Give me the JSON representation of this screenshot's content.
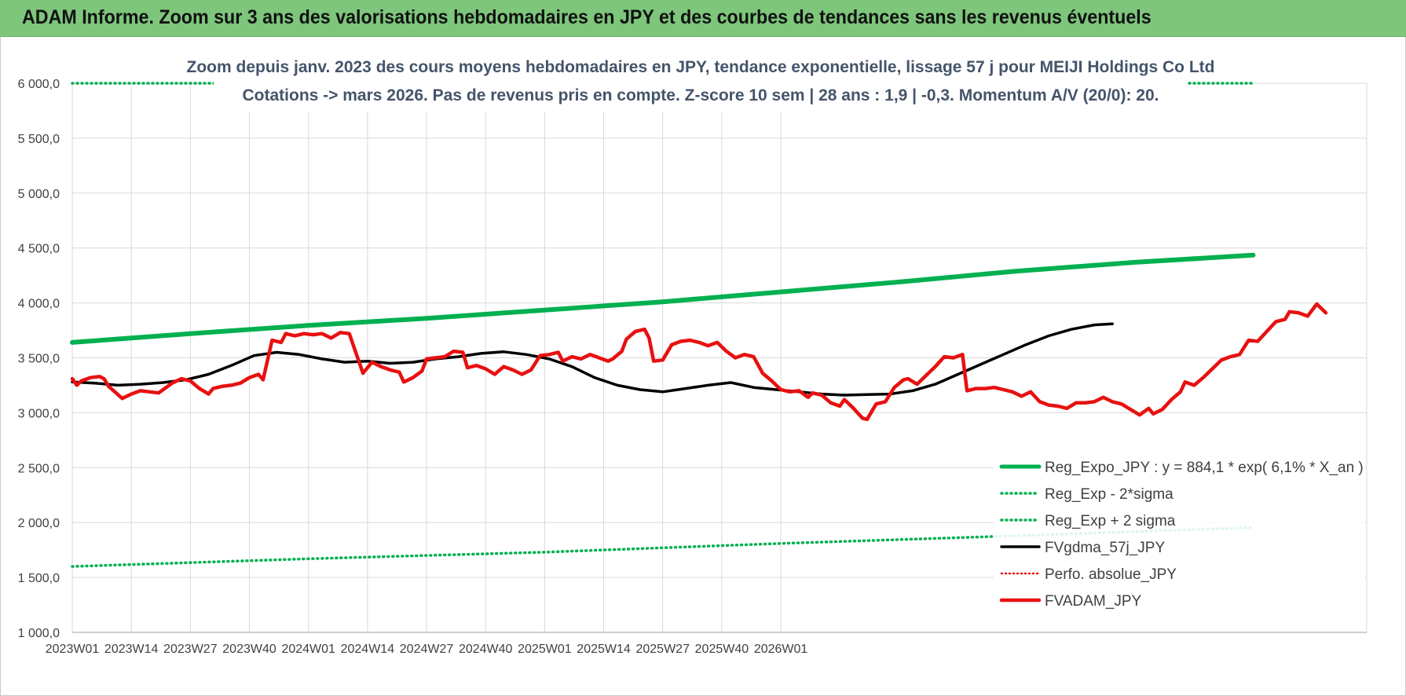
{
  "header": {
    "title": "ADAM Informe. Zoom sur 3 ans des valorisations hebdomadaires en JPY et des courbes de tendances sans les revenus éventuels"
  },
  "colors": {
    "banner": "#7dc67b",
    "trend": "#00b050",
    "price": "#e81010",
    "smooth": "#000000",
    "perf": "#e81010",
    "grid": "#d9d9d9"
  },
  "chart_data": {
    "type": "line",
    "subtitle_line1": "Zoom depuis janv. 2023 des cours moyens hebdomadaires en JPY, tendance exponentielle, lissage 57 j pour MEIJI Holdings Co Ltd",
    "subtitle_line2": "Cotations -> mars 2026. Pas de revenus pris en compte. Z-score 10 sem | 28 ans : 1,9 | -0,3. Momentum A/V (20/0): 20.",
    "ylim": [
      1000,
      6000
    ],
    "y_ticks": [
      "1 000,0",
      "1 500,0",
      "2 000,0",
      "2 500,0",
      "3 000,0",
      "3 500,0",
      "4 000,0",
      "4 500,0",
      "5 000,0",
      "5 500,0",
      "6 000,0"
    ],
    "x_ticks": [
      "2023W01",
      "2023W14",
      "2023W27",
      "2023W40",
      "2024W01",
      "2024W14",
      "2024W27",
      "2024W40",
      "2025W01",
      "2025W14",
      "2025W27",
      "2025W40",
      "2026W01"
    ],
    "grid": true,
    "legend_position": "bottom-right",
    "series": [
      {
        "name": "Reg_Expo_JPY : y = 884,1 * exp( 6,1% *  X_an )",
        "style": "thick-solid",
        "values": [
          [
            0,
            3640
          ],
          [
            26,
            3720
          ],
          [
            52,
            3795
          ],
          [
            78,
            3860
          ],
          [
            104,
            3935
          ],
          [
            130,
            4010
          ],
          [
            156,
            4100
          ],
          [
            182,
            4190
          ],
          [
            208,
            4290
          ],
          [
            234,
            4370
          ],
          [
            260,
            4435
          ]
        ]
      },
      {
        "name": "Reg_Exp - 2*sigma",
        "style": "dotted",
        "values": [
          [
            0,
            1600
          ],
          [
            52,
            1670
          ],
          [
            104,
            1730
          ],
          [
            156,
            1810
          ],
          [
            208,
            1880
          ],
          [
            260,
            1955
          ]
        ]
      },
      {
        "name": "Reg_Exp + 2 sigma",
        "style": "dotted",
        "values": [
          [
            0,
            6000
          ],
          [
            260,
            6000
          ]
        ]
      },
      {
        "name": "FVgdma_57j_JPY",
        "style": "solid",
        "values": [
          [
            0,
            3280
          ],
          [
            5,
            3270
          ],
          [
            10,
            3250
          ],
          [
            15,
            3260
          ],
          [
            20,
            3275
          ],
          [
            25,
            3300
          ],
          [
            30,
            3350
          ],
          [
            35,
            3430
          ],
          [
            40,
            3520
          ],
          [
            45,
            3550
          ],
          [
            50,
            3530
          ],
          [
            55,
            3490
          ],
          [
            60,
            3460
          ],
          [
            65,
            3470
          ],
          [
            70,
            3450
          ],
          [
            75,
            3460
          ],
          [
            80,
            3490
          ],
          [
            85,
            3510
          ],
          [
            90,
            3540
          ],
          [
            95,
            3555
          ],
          [
            100,
            3530
          ],
          [
            105,
            3490
          ],
          [
            110,
            3420
          ],
          [
            115,
            3320
          ],
          [
            120,
            3250
          ],
          [
            125,
            3210
          ],
          [
            130,
            3190
          ],
          [
            135,
            3220
          ],
          [
            140,
            3250
          ],
          [
            145,
            3275
          ],
          [
            150,
            3230
          ],
          [
            155,
            3210
          ],
          [
            160,
            3190
          ],
          [
            165,
            3170
          ],
          [
            170,
            3160
          ],
          [
            175,
            3165
          ],
          [
            180,
            3170
          ],
          [
            185,
            3200
          ],
          [
            190,
            3260
          ],
          [
            195,
            3350
          ],
          [
            200,
            3440
          ],
          [
            205,
            3530
          ],
          [
            210,
            3620
          ],
          [
            215,
            3700
          ],
          [
            220,
            3760
          ],
          [
            225,
            3800
          ],
          [
            229,
            3810
          ]
        ]
      },
      {
        "name": "Perfo. absolue_JPY",
        "style": "dotted",
        "values": []
      },
      {
        "name": "FVADAM_JPY",
        "style": "thick-solid",
        "values": [
          [
            0,
            3310
          ],
          [
            1,
            3250
          ],
          [
            2,
            3290
          ],
          [
            4,
            3320
          ],
          [
            6,
            3330
          ],
          [
            7,
            3310
          ],
          [
            8,
            3240
          ],
          [
            11,
            3130
          ],
          [
            13,
            3170
          ],
          [
            15,
            3200
          ],
          [
            17,
            3190
          ],
          [
            19,
            3180
          ],
          [
            22,
            3270
          ],
          [
            24,
            3310
          ],
          [
            26,
            3290
          ],
          [
            28,
            3220
          ],
          [
            30,
            3170
          ],
          [
            31,
            3220
          ],
          [
            33,
            3240
          ],
          [
            35,
            3250
          ],
          [
            37,
            3270
          ],
          [
            39,
            3320
          ],
          [
            41,
            3350
          ],
          [
            42,
            3300
          ],
          [
            44,
            3660
          ],
          [
            46,
            3640
          ],
          [
            47,
            3720
          ],
          [
            49,
            3700
          ],
          [
            51,
            3720
          ],
          [
            53,
            3710
          ],
          [
            55,
            3720
          ],
          [
            57,
            3680
          ],
          [
            59,
            3730
          ],
          [
            61,
            3720
          ],
          [
            64,
            3360
          ],
          [
            66,
            3460
          ],
          [
            68,
            3420
          ],
          [
            70,
            3390
          ],
          [
            72,
            3370
          ],
          [
            73,
            3280
          ],
          [
            75,
            3320
          ],
          [
            77,
            3380
          ],
          [
            78,
            3490
          ],
          [
            80,
            3500
          ],
          [
            82,
            3510
          ],
          [
            84,
            3560
          ],
          [
            86,
            3550
          ],
          [
            87,
            3410
          ],
          [
            89,
            3430
          ],
          [
            91,
            3400
          ],
          [
            93,
            3350
          ],
          [
            95,
            3420
          ],
          [
            97,
            3390
          ],
          [
            99,
            3350
          ],
          [
            101,
            3390
          ],
          [
            103,
            3520
          ],
          [
            105,
            3530
          ],
          [
            107,
            3550
          ],
          [
            108,
            3470
          ],
          [
            110,
            3510
          ],
          [
            112,
            3490
          ],
          [
            114,
            3530
          ],
          [
            116,
            3500
          ],
          [
            118,
            3470
          ],
          [
            119,
            3490
          ],
          [
            121,
            3560
          ],
          [
            122,
            3670
          ],
          [
            124,
            3740
          ],
          [
            126,
            3760
          ],
          [
            127,
            3680
          ],
          [
            128,
            3470
          ],
          [
            130,
            3480
          ],
          [
            132,
            3620
          ],
          [
            134,
            3650
          ],
          [
            136,
            3660
          ],
          [
            138,
            3640
          ],
          [
            140,
            3610
          ],
          [
            142,
            3640
          ],
          [
            144,
            3560
          ],
          [
            146,
            3500
          ],
          [
            148,
            3530
          ],
          [
            150,
            3510
          ],
          [
            152,
            3360
          ],
          [
            154,
            3290
          ],
          [
            156,
            3210
          ],
          [
            158,
            3190
          ],
          [
            160,
            3200
          ],
          [
            162,
            3140
          ],
          [
            163,
            3180
          ],
          [
            165,
            3160
          ],
          [
            167,
            3090
          ],
          [
            169,
            3060
          ],
          [
            170,
            3120
          ],
          [
            172,
            3040
          ],
          [
            174,
            2950
          ],
          [
            175,
            2940
          ],
          [
            177,
            3080
          ],
          [
            179,
            3100
          ],
          [
            181,
            3230
          ],
          [
            183,
            3300
          ],
          [
            184,
            3310
          ],
          [
            186,
            3260
          ],
          [
            188,
            3340
          ],
          [
            190,
            3420
          ],
          [
            192,
            3510
          ],
          [
            194,
            3500
          ],
          [
            196,
            3530
          ],
          [
            197,
            3200
          ],
          [
            199,
            3220
          ],
          [
            201,
            3220
          ],
          [
            203,
            3230
          ],
          [
            205,
            3210
          ],
          [
            207,
            3190
          ],
          [
            209,
            3150
          ],
          [
            211,
            3190
          ],
          [
            213,
            3100
          ],
          [
            215,
            3070
          ],
          [
            217,
            3060
          ],
          [
            219,
            3040
          ],
          [
            221,
            3090
          ],
          [
            223,
            3090
          ],
          [
            225,
            3100
          ],
          [
            227,
            3140
          ],
          [
            229,
            3100
          ],
          [
            231,
            3080
          ],
          [
            233,
            3030
          ],
          [
            235,
            2980
          ],
          [
            237,
            3040
          ],
          [
            238,
            2990
          ],
          [
            240,
            3030
          ],
          [
            242,
            3120
          ],
          [
            244,
            3190
          ],
          [
            245,
            3280
          ],
          [
            247,
            3250
          ],
          [
            249,
            3320
          ],
          [
            251,
            3400
          ],
          [
            253,
            3480
          ],
          [
            255,
            3510
          ],
          [
            257,
            3530
          ],
          [
            259,
            3660
          ],
          [
            261,
            3650
          ],
          [
            263,
            3740
          ],
          [
            265,
            3830
          ],
          [
            267,
            3850
          ],
          [
            268,
            3920
          ],
          [
            270,
            3910
          ],
          [
            272,
            3880
          ],
          [
            274,
            3990
          ],
          [
            276,
            3910
          ]
        ]
      }
    ]
  }
}
